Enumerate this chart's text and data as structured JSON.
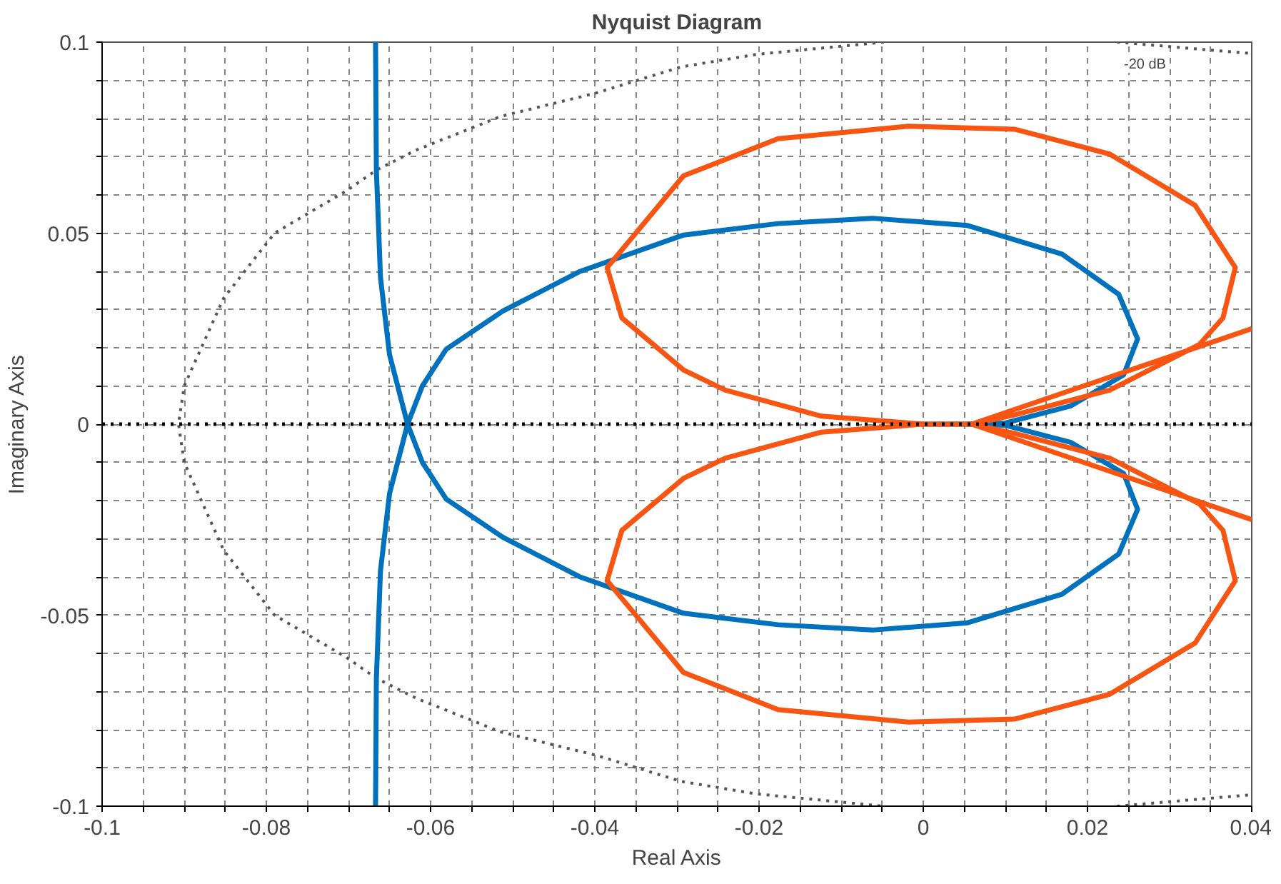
{
  "chart_data": {
    "type": "line",
    "title": "Nyquist Diagram",
    "xlabel": "Real Axis",
    "ylabel": "Imaginary Axis",
    "xlim": [
      -0.1,
      0.04
    ],
    "ylim": [
      -0.1,
      0.1
    ],
    "xticks": [
      {
        "value": -0.1,
        "label": "-0.1"
      },
      {
        "value": -0.095,
        "label": null
      },
      {
        "value": -0.09,
        "label": null
      },
      {
        "value": -0.085,
        "label": null
      },
      {
        "value": -0.08,
        "label": "-0.08"
      },
      {
        "value": -0.075,
        "label": null
      },
      {
        "value": -0.07,
        "label": null
      },
      {
        "value": -0.065,
        "label": null
      },
      {
        "value": -0.06,
        "label": "-0.06"
      },
      {
        "value": -0.055,
        "label": null
      },
      {
        "value": -0.05,
        "label": null
      },
      {
        "value": -0.045,
        "label": null
      },
      {
        "value": -0.04,
        "label": "-0.04"
      },
      {
        "value": -0.035,
        "label": null
      },
      {
        "value": -0.03,
        "label": null
      },
      {
        "value": -0.025,
        "label": null
      },
      {
        "value": -0.02,
        "label": "-0.02"
      },
      {
        "value": -0.015,
        "label": null
      },
      {
        "value": -0.01,
        "label": null
      },
      {
        "value": -0.005,
        "label": null
      },
      {
        "value": 0,
        "label": "0"
      },
      {
        "value": 0.005,
        "label": null
      },
      {
        "value": 0.01,
        "label": null
      },
      {
        "value": 0.015,
        "label": null
      },
      {
        "value": 0.02,
        "label": "0.02"
      },
      {
        "value": 0.025,
        "label": null
      },
      {
        "value": 0.03,
        "label": null
      },
      {
        "value": 0.035,
        "label": null
      },
      {
        "value": 0.04,
        "label": "0.04"
      }
    ],
    "yticks": [
      {
        "value": -0.1,
        "label": "-0.1"
      },
      {
        "value": -0.09,
        "label": null
      },
      {
        "value": -0.08,
        "label": null
      },
      {
        "value": -0.07,
        "label": null
      },
      {
        "value": -0.06,
        "label": null
      },
      {
        "value": -0.05,
        "label": "-0.05"
      },
      {
        "value": -0.04,
        "label": null
      },
      {
        "value": -0.03,
        "label": null
      },
      {
        "value": -0.02,
        "label": null
      },
      {
        "value": -0.01,
        "label": null
      },
      {
        "value": 0,
        "label": "0"
      },
      {
        "value": 0.01,
        "label": null
      },
      {
        "value": 0.02,
        "label": null
      },
      {
        "value": 0.03,
        "label": null
      },
      {
        "value": 0.04,
        "label": null
      },
      {
        "value": 0.05,
        "label": "0.05"
      },
      {
        "value": 0.06,
        "label": null
      },
      {
        "value": 0.07,
        "label": null
      },
      {
        "value": 0.08,
        "label": null
      },
      {
        "value": 0.09,
        "label": null
      },
      {
        "value": 0.1,
        "label": "0.1"
      }
    ],
    "grid": true,
    "marker": "none",
    "line_style": "solid",
    "ref_lines": [
      {
        "axis": "y",
        "value": 0,
        "label": null,
        "color": "#000000",
        "line_style": "dotted"
      }
    ],
    "annotations": [
      {
        "text": "-20 dB",
        "x": 0.027,
        "y": 0.094
      }
    ],
    "series": [
      {
        "color": "#555555",
        "line_style": "dotted",
        "x": [
          -0.0048,
          -0.0203,
          -0.0295,
          -0.0398,
          -0.0514,
          -0.0617,
          -0.0666,
          -0.0703,
          -0.079,
          -0.0852,
          -0.09,
          -0.0907,
          -0.09,
          -0.0852,
          -0.079,
          -0.0703,
          -0.0666,
          -0.0617,
          -0.0514,
          -0.0398,
          -0.0295,
          -0.0203,
          -0.0048,
          null,
          0.0236,
          0.04
        ],
        "values": [
          0.1,
          0.0968,
          0.0935,
          0.0867,
          0.0806,
          0.0718,
          0.0665,
          0.061,
          0.05,
          0.033,
          0.01,
          0,
          -0.01,
          -0.033,
          -0.05,
          -0.061,
          -0.0665,
          -0.0718,
          -0.0806,
          -0.0867,
          -0.0935,
          -0.0968,
          -0.1,
          null,
          -0.1,
          -0.097
        ]
      },
      {
        "color": "#555555",
        "line_style": "dotted",
        "x": [
          0.0236,
          0.04
        ],
        "values": [
          0.1,
          0.097
        ]
      },
      {
        "color": "#0072bd",
        "x": [
          -0.0667,
          -0.0666,
          -0.0661,
          -0.065,
          -0.0628,
          -0.065,
          -0.0661,
          -0.0666,
          -0.0667
        ],
        "values": [
          0.1,
          0.0665,
          0.0384,
          0.0182,
          0,
          -0.0182,
          -0.0384,
          -0.0665,
          -0.1
        ]
      },
      {
        "color": "#0072bd",
        "x": [
          0,
          0.0054,
          0.01,
          0.018,
          0.0244,
          0.0261,
          0.0238,
          0.0169,
          0.0054,
          -0.0062,
          -0.0177,
          -0.0292,
          -0.0419,
          -0.0512,
          -0.0581,
          -0.061,
          -0.0628
        ],
        "values": [
          0,
          0,
          0.0003,
          0.0048,
          0.0129,
          0.0223,
          0.034,
          0.0445,
          0.052,
          0.0539,
          0.0525,
          0.0495,
          0.0399,
          0.0296,
          0.0196,
          0.01,
          0
        ]
      },
      {
        "color": "#0072bd",
        "x": [
          -0.0628,
          -0.061,
          -0.0581,
          -0.0512,
          -0.0419,
          -0.0292,
          -0.0177,
          -0.0062,
          0.0054,
          0.0169,
          0.0238,
          0.0261,
          0.0244,
          0.018,
          0.01,
          0.0054
        ],
        "values": [
          0,
          -0.01,
          -0.0196,
          -0.0296,
          -0.0399,
          -0.0495,
          -0.0525,
          -0.0539,
          -0.052,
          -0.0445,
          -0.034,
          -0.0223,
          -0.0129,
          -0.0048,
          -0.0003,
          0
        ]
      },
      {
        "color": "#f85512",
        "x": [
          0.04,
          0.0059,
          0,
          -0.0124,
          -0.0241,
          -0.0292,
          -0.0367,
          -0.0385,
          -0.0292,
          -0.0177,
          -0.0018,
          0.0111,
          0.0227,
          0.0331,
          0.038,
          0.0365,
          0.0336,
          0.0227,
          0.0111,
          0.0059,
          0.04
        ],
        "values": [
          0.025,
          0,
          0,
          0.0021,
          0.0089,
          0.0142,
          0.0278,
          0.041,
          0.065,
          0.0747,
          0.078,
          0.0772,
          0.0707,
          0.0573,
          0.041,
          0.0278,
          0.0208,
          0.0089,
          0.0024,
          0,
          -0.025
        ]
      },
      {
        "color": "#f85512",
        "x": [
          0.0059,
          0.0111,
          0.0227,
          0.0336,
          0.0365,
          0.038,
          0.0331,
          0.0227,
          0.0111,
          -0.0018,
          -0.0177,
          -0.0292,
          -0.0385,
          -0.0367,
          -0.0292,
          -0.0241,
          -0.0124,
          0
        ],
        "values": [
          0,
          -0.0024,
          -0.0089,
          -0.0208,
          -0.0278,
          -0.041,
          -0.0573,
          -0.0707,
          -0.0772,
          -0.078,
          -0.0747,
          -0.065,
          -0.041,
          -0.0278,
          -0.0142,
          -0.0089,
          -0.0021,
          0
        ]
      }
    ]
  }
}
